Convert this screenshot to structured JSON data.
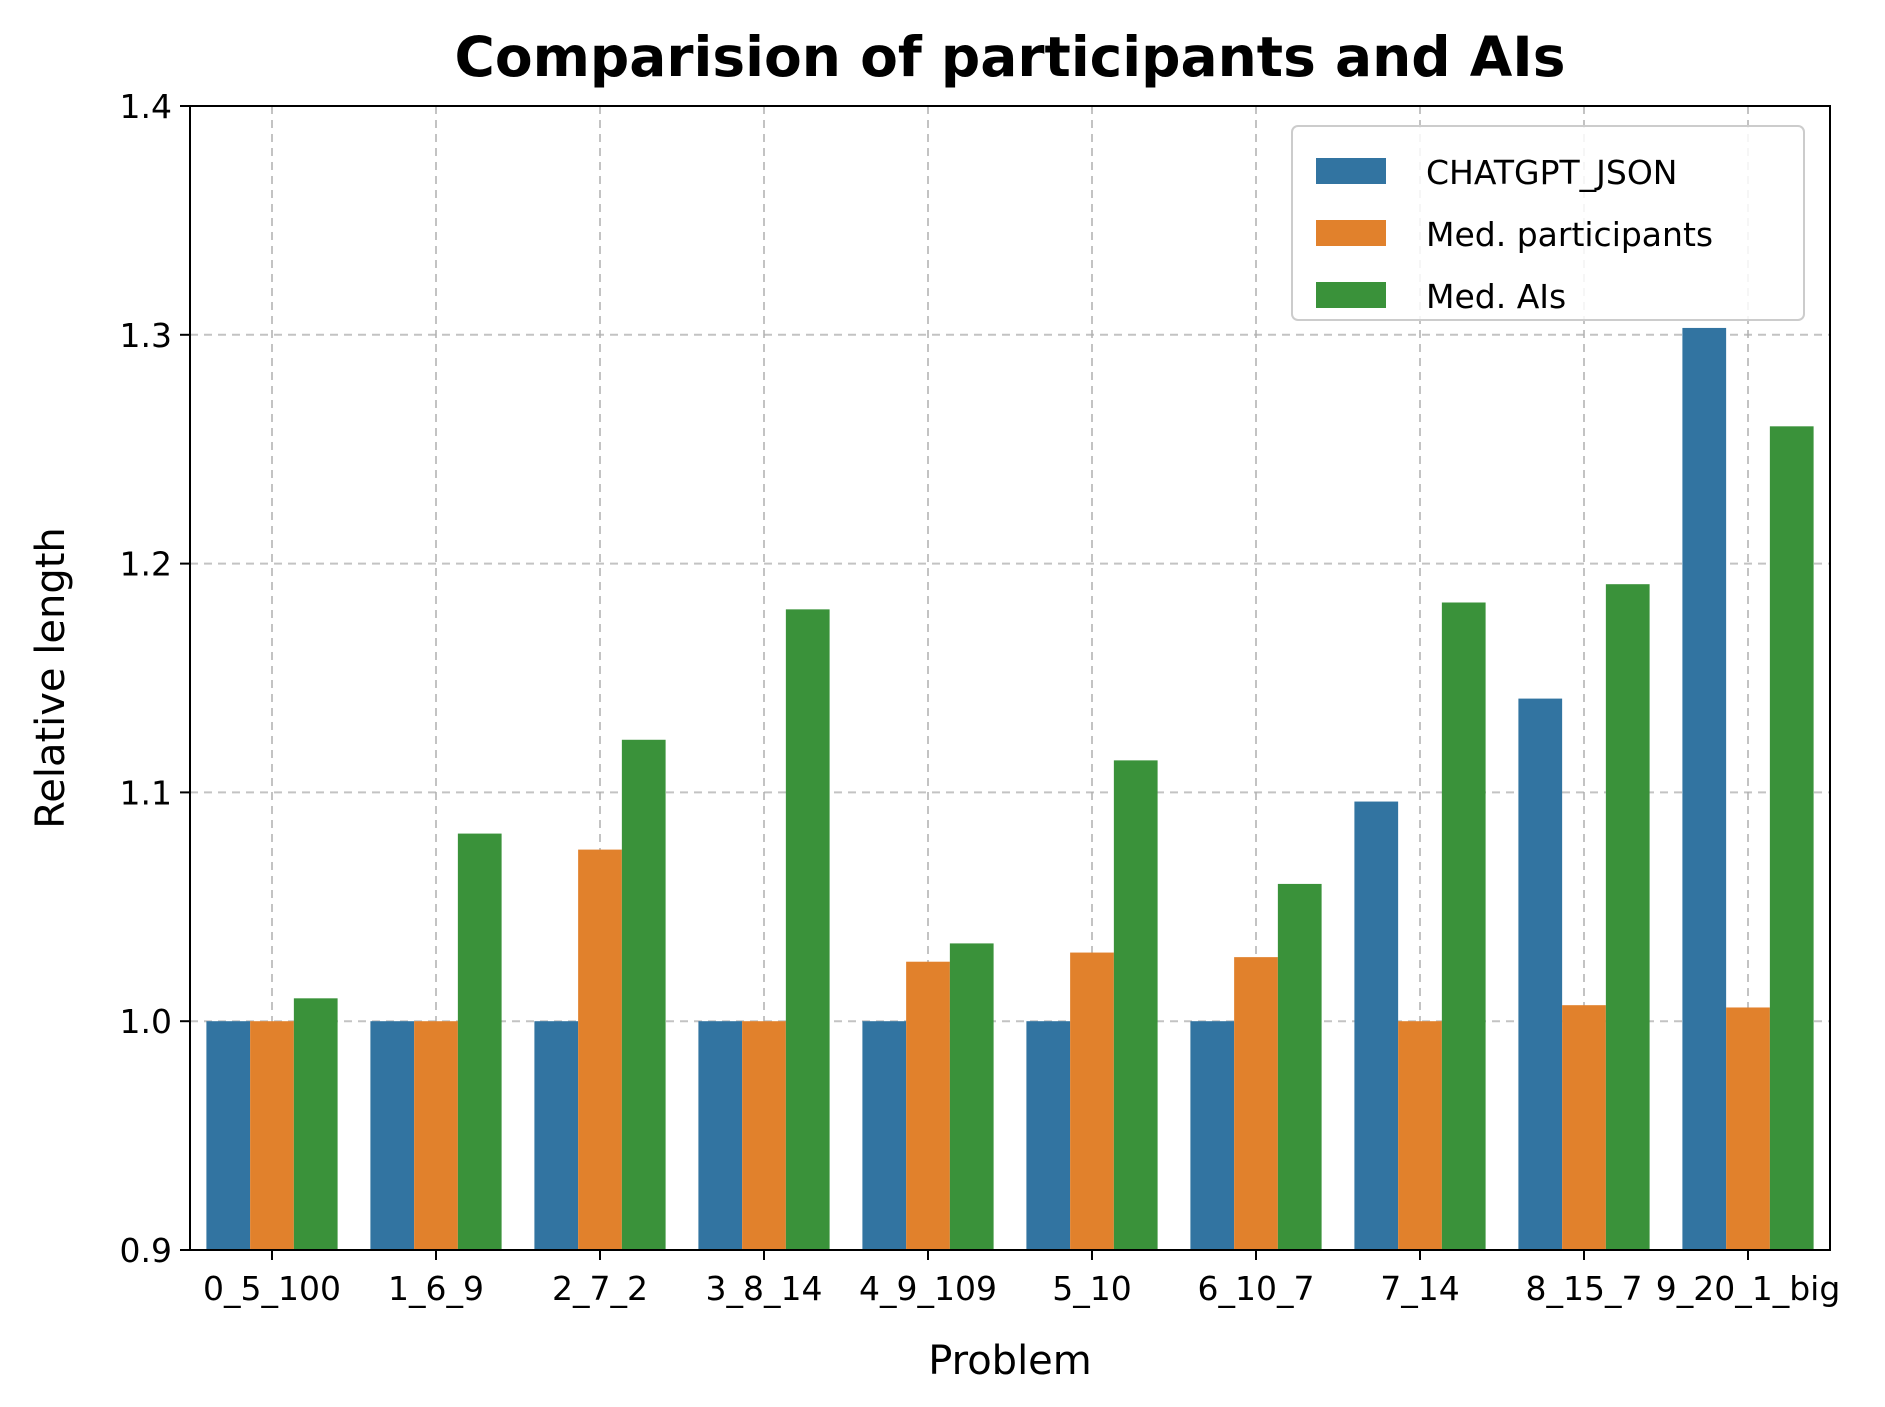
{
  "chart_data": {
    "type": "bar",
    "title": "Comparision of participants and AIs",
    "xlabel": "Problem",
    "ylabel": "Relative length",
    "ylim": [
      0.9,
      1.4
    ],
    "yticks": [
      "0.9",
      "1.0",
      "1.1",
      "1.2",
      "1.3",
      "1.4"
    ],
    "grid": true,
    "legend_position": "top-right",
    "categories": [
      "0_5_100",
      "1_6_9",
      "2_7_2",
      "3_8_14",
      "4_9_109",
      "5_10",
      "6_10_7",
      "7_14",
      "8_15_7",
      "9_20_1_big"
    ],
    "series": [
      {
        "name": "CHATGPT_JSON",
        "color": "#3274a1",
        "values": [
          1.0,
          1.0,
          1.0,
          1.0,
          1.0,
          1.0,
          1.0,
          1.096,
          1.141,
          1.303
        ]
      },
      {
        "name": "Med. participants",
        "color": "#e1812c",
        "values": [
          1.0,
          1.0,
          1.075,
          1.0,
          1.026,
          1.03,
          1.028,
          1.0,
          1.007,
          1.006
        ]
      },
      {
        "name": "Med. AIs",
        "color": "#3a923a",
        "values": [
          1.01,
          1.082,
          1.123,
          1.18,
          1.034,
          1.114,
          1.06,
          1.183,
          1.191,
          1.26
        ]
      }
    ]
  }
}
